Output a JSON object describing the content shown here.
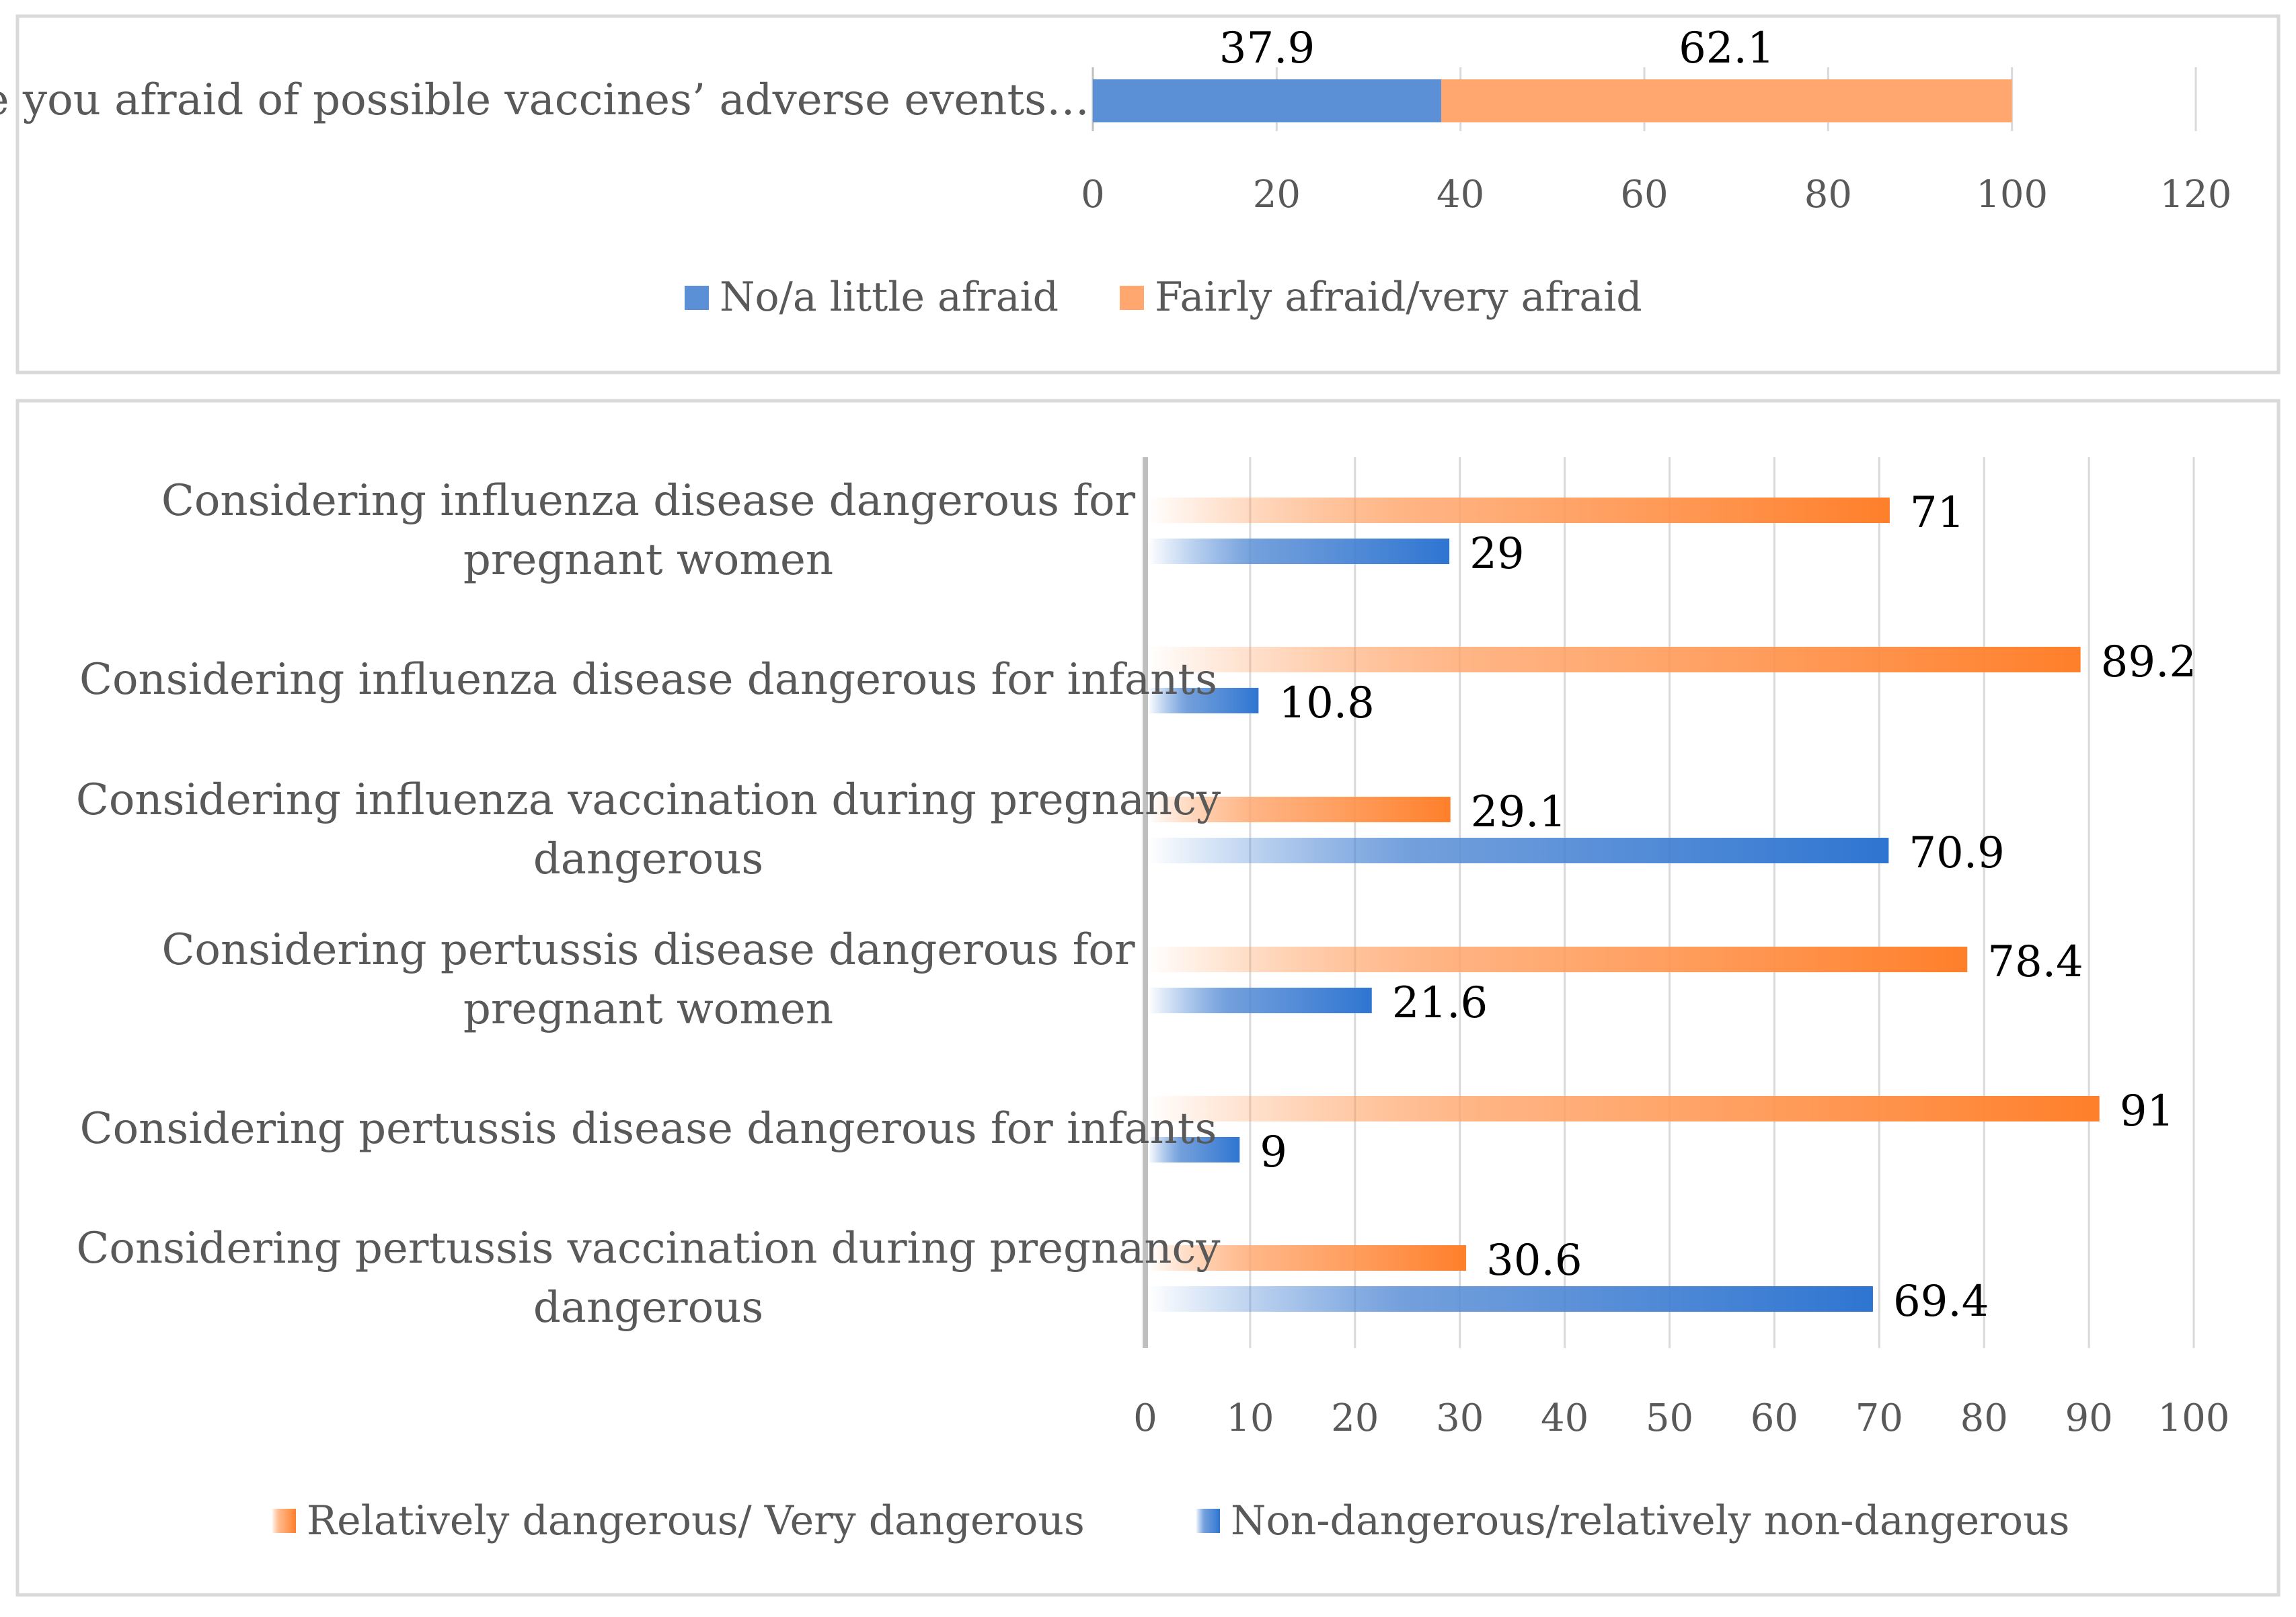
{
  "chart_data": [
    {
      "type": "bar",
      "orientation": "horizontal",
      "stacked": true,
      "categories": [
        "Are you afraid of possible vaccines’ adverse events…"
      ],
      "series": [
        {
          "name": "No/a little afraid",
          "values": [
            37.9
          ],
          "color": "#5b8fd6"
        },
        {
          "name": "Fairly afraid/very afraid",
          "values": [
            62.1
          ],
          "color": "#ffa76e"
        }
      ],
      "data_labels": [
        "37.9",
        "62.1"
      ],
      "xlim": [
        0,
        120
      ],
      "x_ticks": [
        "0",
        "20",
        "40",
        "60",
        "80",
        "100",
        "120"
      ],
      "grid": true,
      "legend": "bottom"
    },
    {
      "type": "bar",
      "orientation": "horizontal",
      "stacked": false,
      "categories": [
        [
          "Considering influenza disease dangerous for",
          "pregnant women"
        ],
        [
          "Considering influenza disease dangerous for infants"
        ],
        [
          "Considering influenza vaccination during pregnancy",
          "dangerous"
        ],
        [
          "Considering pertussis disease dangerous for",
          "pregnant women"
        ],
        [
          "Considering pertussis disease dangerous for infants"
        ],
        [
          "Considering pertussis vaccination during pregnancy",
          "dangerous"
        ]
      ],
      "series": [
        {
          "name": "Relatively dangerous/ Very dangerous",
          "values": [
            71,
            89.2,
            29.1,
            78.4,
            91,
            30.6
          ],
          "labels": [
            "71",
            "89.2",
            "29.1",
            "78.4",
            "91",
            "30.6"
          ],
          "color": "#ff7f2a"
        },
        {
          "name": "Non-dangerous/relatively non-dangerous",
          "values": [
            29,
            10.8,
            70.9,
            21.6,
            9,
            69.4
          ],
          "labels": [
            "29",
            "10.8",
            "70.9",
            "21.6",
            "9",
            "69.4"
          ],
          "color": "#2e75d1"
        }
      ],
      "xlim": [
        0,
        100
      ],
      "x_ticks": [
        "0",
        "10",
        "20",
        "30",
        "40",
        "50",
        "60",
        "70",
        "80",
        "90",
        "100"
      ],
      "grid": true,
      "legend": "bottom"
    }
  ]
}
